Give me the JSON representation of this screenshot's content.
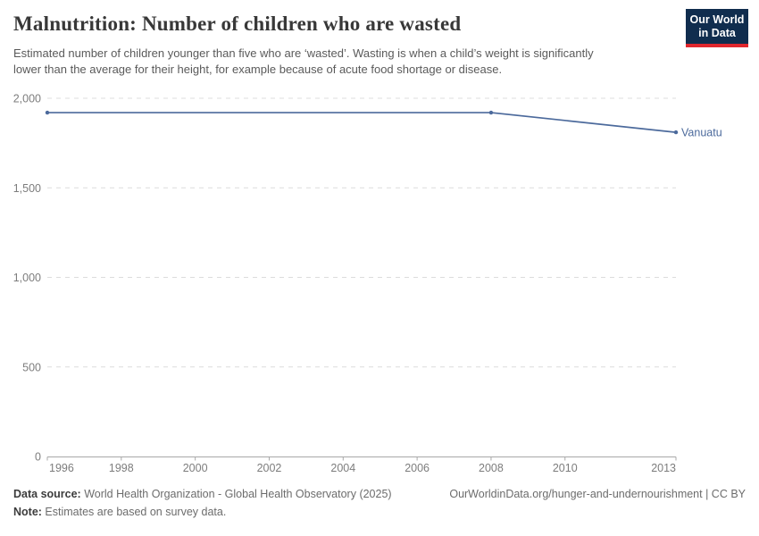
{
  "header": {
    "title": "Malnutrition: Number of children who are wasted",
    "subtitle": "Estimated number of children younger than five who are ‘wasted’. Wasting is when a child’s weight is significantly lower than the average for their height, for example because of acute food shortage or disease."
  },
  "logo": {
    "line1": "Our World",
    "line2": "in Data",
    "bg_color": "#102d4e",
    "accent_color": "#e0262d"
  },
  "chart_data": {
    "type": "line",
    "title": "Malnutrition: Number of children who are wasted",
    "entity_label": "Vanuatu",
    "series": [
      {
        "name": "Vanuatu",
        "color": "#4c6a9c",
        "points": [
          {
            "x": 1996,
            "y": 1920
          },
          {
            "x": 2008,
            "y": 1920
          },
          {
            "x": 2013,
            "y": 1810
          }
        ]
      }
    ],
    "xlim": [
      1996,
      2013
    ],
    "ylim": [
      0,
      2000
    ],
    "yticks": [
      {
        "value": 0,
        "label": "0"
      },
      {
        "value": 500,
        "label": "500"
      },
      {
        "value": 1000,
        "label": "1,000"
      },
      {
        "value": 1500,
        "label": "1,500"
      },
      {
        "value": 2000,
        "label": "2,000"
      }
    ],
    "xticks": [
      {
        "value": 1996,
        "label": "1996"
      },
      {
        "value": 1998,
        "label": "1998"
      },
      {
        "value": 2000,
        "label": "2000"
      },
      {
        "value": 2002,
        "label": "2002"
      },
      {
        "value": 2004,
        "label": "2004"
      },
      {
        "value": 2006,
        "label": "2006"
      },
      {
        "value": 2008,
        "label": "2008"
      },
      {
        "value": 2010,
        "label": "2010"
      },
      {
        "value": 2013,
        "label": "2013"
      }
    ],
    "grid": "horizontal-dashed",
    "grid_color": "#dcdcdc",
    "axis_color": "#a8a8a8",
    "tick_label_color": "#7d7d7d"
  },
  "footer": {
    "data_source_label": "Data source:",
    "data_source_text": " World Health Organization - Global Health Observatory (2025)",
    "url_text": "OurWorldinData.org/hunger-and-undernourishment | CC BY",
    "note_label": "Note:",
    "note_text": " Estimates are based on survey data."
  }
}
